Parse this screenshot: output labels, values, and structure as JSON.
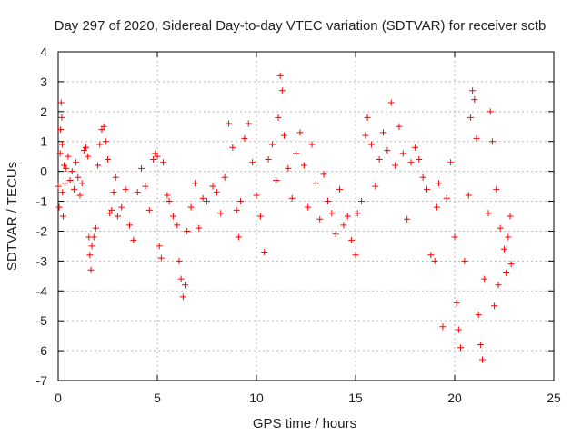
{
  "chart_data": {
    "type": "scatter",
    "title": "Day 297 of 2020, Sidereal Day-to-day VTEC variation (SDTVAR) for receiver sctb",
    "xlabel": "GPS time / hours",
    "ylabel": "SDTVAR / TECUs",
    "xlim": [
      0,
      25
    ],
    "ylim": [
      -7,
      4
    ],
    "xticks": [
      "0",
      "5",
      "10",
      "15",
      "20",
      "25"
    ],
    "yticks": [
      "4",
      "3",
      "2",
      "1",
      "0",
      "-1",
      "-2",
      "-3",
      "-4",
      "-5",
      "-6",
      "-7"
    ],
    "grid": true,
    "marker": "+",
    "color": "#ff0000",
    "series": [
      {
        "name": "SDTVAR",
        "points": [
          [
            0.0,
            -0.5
          ],
          [
            0.05,
            -1.2
          ],
          [
            0.1,
            0.6
          ],
          [
            0.12,
            1.4
          ],
          [
            0.15,
            2.3
          ],
          [
            0.18,
            1.8
          ],
          [
            0.2,
            0.9
          ],
          [
            0.22,
            -0.7
          ],
          [
            0.25,
            -1.5
          ],
          [
            0.3,
            0.2
          ],
          [
            0.35,
            -0.4
          ],
          [
            0.4,
            0.1
          ],
          [
            0.5,
            0.5
          ],
          [
            0.6,
            -0.3
          ],
          [
            0.7,
            0.0
          ],
          [
            0.8,
            -0.6
          ],
          [
            0.9,
            0.3
          ],
          [
            1.0,
            -0.2
          ],
          [
            1.1,
            -0.8
          ],
          [
            1.2,
            -0.4
          ],
          [
            1.3,
            0.7
          ],
          [
            1.4,
            0.8
          ],
          [
            1.5,
            0.5
          ],
          [
            1.55,
            -2.2
          ],
          [
            1.6,
            -2.8
          ],
          [
            1.65,
            -3.3
          ],
          [
            1.7,
            -2.5
          ],
          [
            1.8,
            -2.2
          ],
          [
            1.9,
            -1.9
          ],
          [
            2.0,
            0.2
          ],
          [
            2.1,
            0.9
          ],
          [
            2.2,
            1.4
          ],
          [
            2.3,
            1.5
          ],
          [
            2.4,
            1.0
          ],
          [
            2.5,
            0.4
          ],
          [
            2.6,
            -1.4
          ],
          [
            2.7,
            -1.3
          ],
          [
            2.8,
            -0.7
          ],
          [
            2.9,
            -0.2
          ],
          [
            3.0,
            -1.5
          ],
          [
            3.2,
            -1.2
          ],
          [
            3.4,
            -0.6
          ],
          [
            3.6,
            -1.8
          ],
          [
            3.8,
            -2.3
          ],
          [
            4.0,
            -0.7
          ],
          [
            4.2,
            0.1
          ],
          [
            4.4,
            -0.5
          ],
          [
            4.6,
            -1.3
          ],
          [
            4.8,
            0.4
          ],
          [
            4.9,
            0.6
          ],
          [
            5.0,
            0.5
          ],
          [
            5.1,
            -2.5
          ],
          [
            5.2,
            -2.9
          ],
          [
            5.3,
            0.3
          ],
          [
            5.5,
            -0.8
          ],
          [
            5.6,
            -1.0
          ],
          [
            5.8,
            -1.5
          ],
          [
            6.0,
            -1.8
          ],
          [
            6.1,
            -3.0
          ],
          [
            6.2,
            -3.6
          ],
          [
            6.3,
            -4.2
          ],
          [
            6.4,
            -3.8
          ],
          [
            6.5,
            -2.0
          ],
          [
            6.7,
            -1.2
          ],
          [
            6.9,
            -0.4
          ],
          [
            7.1,
            -1.9
          ],
          [
            7.3,
            -0.9
          ],
          [
            7.5,
            -1.0
          ],
          [
            7.8,
            -0.5
          ],
          [
            8.0,
            -0.7
          ],
          [
            8.2,
            -1.4
          ],
          [
            8.4,
            -0.2
          ],
          [
            8.6,
            1.6
          ],
          [
            8.8,
            0.8
          ],
          [
            9.0,
            -1.3
          ],
          [
            9.1,
            -2.2
          ],
          [
            9.2,
            -1.0
          ],
          [
            9.4,
            1.1
          ],
          [
            9.6,
            1.6
          ],
          [
            9.8,
            0.3
          ],
          [
            10.0,
            -0.8
          ],
          [
            10.2,
            -1.5
          ],
          [
            10.4,
            -2.7
          ],
          [
            10.6,
            0.4
          ],
          [
            10.8,
            0.9
          ],
          [
            11.0,
            -0.3
          ],
          [
            11.1,
            1.8
          ],
          [
            11.2,
            3.2
          ],
          [
            11.3,
            2.7
          ],
          [
            11.4,
            1.2
          ],
          [
            11.6,
            0.1
          ],
          [
            11.8,
            -0.9
          ],
          [
            12.0,
            0.6
          ],
          [
            12.2,
            1.3
          ],
          [
            12.4,
            0.2
          ],
          [
            12.6,
            -1.2
          ],
          [
            12.8,
            0.9
          ],
          [
            13.0,
            -0.4
          ],
          [
            13.2,
            -1.6
          ],
          [
            13.4,
            -0.1
          ],
          [
            13.6,
            -1.0
          ],
          [
            13.8,
            -1.4
          ],
          [
            14.0,
            -2.1
          ],
          [
            14.2,
            -0.6
          ],
          [
            14.4,
            -1.8
          ],
          [
            14.6,
            -1.5
          ],
          [
            14.8,
            -2.3
          ],
          [
            15.0,
            -2.8
          ],
          [
            15.1,
            -1.4
          ],
          [
            15.3,
            -1.0
          ],
          [
            15.5,
            1.2
          ],
          [
            15.6,
            1.8
          ],
          [
            15.8,
            0.9
          ],
          [
            16.0,
            -0.5
          ],
          [
            16.2,
            0.4
          ],
          [
            16.4,
            1.3
          ],
          [
            16.6,
            0.7
          ],
          [
            16.8,
            2.3
          ],
          [
            17.0,
            0.2
          ],
          [
            17.2,
            1.5
          ],
          [
            17.4,
            0.6
          ],
          [
            17.6,
            -1.6
          ],
          [
            17.8,
            0.3
          ],
          [
            18.0,
            0.8
          ],
          [
            18.2,
            0.4
          ],
          [
            18.4,
            -0.2
          ],
          [
            18.6,
            -0.6
          ],
          [
            18.8,
            -2.8
          ],
          [
            19.0,
            -3.0
          ],
          [
            19.1,
            -1.2
          ],
          [
            19.2,
            -0.4
          ],
          [
            19.4,
            -5.2
          ],
          [
            19.6,
            -0.9
          ],
          [
            19.8,
            0.3
          ],
          [
            20.0,
            -2.2
          ],
          [
            20.1,
            -4.4
          ],
          [
            20.2,
            -5.3
          ],
          [
            20.3,
            -5.9
          ],
          [
            20.5,
            -3.0
          ],
          [
            20.7,
            -0.8
          ],
          [
            20.8,
            1.8
          ],
          [
            20.9,
            2.7
          ],
          [
            21.0,
            2.4
          ],
          [
            21.1,
            1.1
          ],
          [
            21.2,
            -4.8
          ],
          [
            21.3,
            -5.8
          ],
          [
            21.4,
            -6.3
          ],
          [
            21.5,
            -3.6
          ],
          [
            21.7,
            -1.4
          ],
          [
            21.8,
            2.0
          ],
          [
            21.9,
            1.0
          ],
          [
            22.0,
            -4.5
          ],
          [
            22.1,
            -0.6
          ],
          [
            22.2,
            -3.8
          ],
          [
            22.3,
            -1.9
          ],
          [
            22.5,
            -2.6
          ],
          [
            22.6,
            -3.4
          ],
          [
            22.7,
            -2.2
          ],
          [
            22.8,
            -1.5
          ],
          [
            22.85,
            -3.1
          ]
        ]
      }
    ]
  }
}
